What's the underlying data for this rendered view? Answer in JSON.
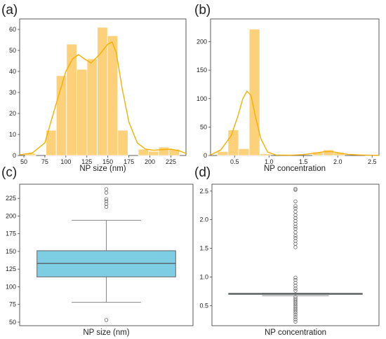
{
  "chart_data": [
    {
      "panel": "(a)",
      "type": "bar",
      "subtype": "histogram",
      "xlabel": "NP size (nm)",
      "ylabel": "",
      "xlim": [
        45,
        243
      ],
      "ylim": [
        0,
        65
      ],
      "x_ticks": [
        50,
        75,
        100,
        125,
        150,
        175,
        200,
        225
      ],
      "y_ticks": [
        0,
        10,
        20,
        30,
        40,
        50,
        60
      ],
      "bin_edges": [
        52,
        64.2,
        76.4,
        88.6,
        100.8,
        113,
        125.2,
        137.4,
        149.6,
        161.8,
        174,
        186.2,
        198.4,
        210.6,
        222.8,
        235
      ],
      "values": [
        1,
        0,
        12,
        38,
        53,
        41,
        46,
        61,
        57,
        12,
        0,
        3,
        2,
        4,
        3
      ],
      "kde": [
        [
          45,
          0.3
        ],
        [
          60,
          1.2
        ],
        [
          75,
          6
        ],
        [
          88,
          24
        ],
        [
          100,
          40
        ],
        [
          108,
          46
        ],
        [
          115,
          48
        ],
        [
          122,
          46
        ],
        [
          130,
          44
        ],
        [
          140,
          48
        ],
        [
          150,
          53
        ],
        [
          155,
          54
        ],
        [
          160,
          49
        ],
        [
          167,
          32
        ],
        [
          175,
          16
        ],
        [
          185,
          6
        ],
        [
          195,
          3
        ],
        [
          205,
          2.5
        ],
        [
          215,
          2.8
        ],
        [
          225,
          3
        ],
        [
          235,
          2.2
        ],
        [
          243,
          1
        ]
      ],
      "bar_color": "#fdd07a",
      "line_color": "#f4b000",
      "grid": false
    },
    {
      "panel": "(b)",
      "type": "bar",
      "subtype": "histogram",
      "xlabel": "NP concentration",
      "ylabel": "",
      "xlim": [
        0.15,
        2.6
      ],
      "ylim": [
        0,
        240
      ],
      "x_ticks": [
        0.5,
        1.0,
        1.5,
        2.0,
        2.5
      ],
      "y_ticks": [
        0,
        50,
        100,
        150,
        200
      ],
      "bin_edges": [
        0.25,
        0.404,
        0.558,
        0.712,
        0.866,
        1.02,
        1.174,
        1.328,
        1.482,
        1.636,
        1.79,
        1.944,
        2.098,
        2.252,
        2.406,
        2.56
      ],
      "bin_values": [
        7,
        45,
        12,
        222,
        3,
        0,
        0,
        0,
        0,
        6,
        10,
        5,
        0,
        0,
        1
      ],
      "kde": [
        [
          0.15,
          1
        ],
        [
          0.3,
          10
        ],
        [
          0.45,
          35
        ],
        [
          0.55,
          70
        ],
        [
          0.62,
          100
        ],
        [
          0.68,
          113
        ],
        [
          0.74,
          105
        ],
        [
          0.8,
          70
        ],
        [
          0.88,
          30
        ],
        [
          0.98,
          6
        ],
        [
          1.1,
          0.8
        ],
        [
          1.3,
          0.5
        ],
        [
          1.5,
          1.5
        ],
        [
          1.65,
          4
        ],
        [
          1.8,
          6.5
        ],
        [
          1.9,
          7
        ],
        [
          2.0,
          5
        ],
        [
          2.15,
          2
        ],
        [
          2.3,
          1
        ],
        [
          2.45,
          0.5
        ],
        [
          2.6,
          0.3
        ]
      ],
      "bar_color": "#fdd07a",
      "line_color": "#f4b000",
      "grid": false
    },
    {
      "panel": "(c)",
      "type": "box",
      "xlabel": "NP size (nm)",
      "ylabel": "",
      "ylim": [
        45,
        245
      ],
      "y_ticks": [
        50,
        75,
        100,
        125,
        150,
        175,
        200,
        225
      ],
      "box": {
        "whisker_low": 78,
        "q1": 114,
        "median": 133,
        "q3": 151,
        "whisker_high": 194
      },
      "outliers": [
        53,
        213,
        217,
        221,
        224,
        233,
        238
      ],
      "box_color": "#7dcde3",
      "grid": false
    },
    {
      "panel": "(d)",
      "type": "box",
      "xlabel": "NP concentration",
      "ylabel": "",
      "ylim": [
        0.15,
        2.62
      ],
      "y_ticks": [
        0.5,
        1.0,
        1.5,
        2.0,
        2.5
      ],
      "box": {
        "whisker_low": 0.675,
        "q1": 0.705,
        "median": 0.71,
        "q3": 0.715,
        "whisker_high": 0.715
      },
      "outliers": [
        0.22,
        0.26,
        0.3,
        0.34,
        0.38,
        0.41,
        0.44,
        0.47,
        0.5,
        0.53,
        0.56,
        0.59,
        0.62,
        0.65,
        0.76,
        0.8,
        0.85,
        0.9,
        0.95,
        0.99,
        1.52,
        1.58,
        1.63,
        1.68,
        1.72,
        1.78,
        1.84,
        1.88,
        1.93,
        1.98,
        2.03,
        2.08,
        2.14,
        2.2,
        2.24,
        2.32,
        2.52,
        2.54
      ],
      "box_color": "#5aa0b8",
      "grid": false
    }
  ]
}
